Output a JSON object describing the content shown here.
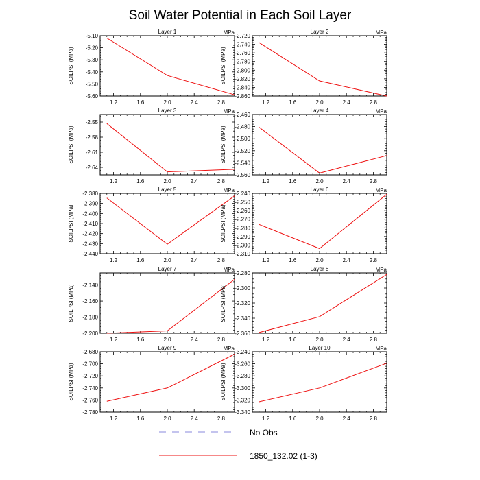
{
  "title": "Soil Water Potential in Each Soil Layer",
  "legend": [
    {
      "label": "No Obs",
      "color": "#8888dd",
      "style": "dashed"
    },
    {
      "label": "1850_132.02 (1-3)",
      "color": "#ee1111",
      "style": "solid"
    }
  ],
  "chart_data": [
    {
      "type": "line",
      "title": "Layer 1",
      "unit": "MPa",
      "ylabel": "SOILPSI  (MPa)",
      "xlim": [
        1,
        3
      ],
      "xticks": [
        "1.2",
        "1.6",
        "2.0",
        "2.4",
        "2.8"
      ],
      "ylim": [
        -5.6,
        -5.1
      ],
      "yticks": [
        "-5.10",
        "-5.20",
        "-5.30",
        "-5.40",
        "-5.50",
        "-5.60"
      ],
      "series": [
        {
          "x": [
            1.1,
            2.0,
            3.0
          ],
          "y": [
            -5.12,
            -5.43,
            -5.59
          ],
          "color": "#ee1111"
        }
      ]
    },
    {
      "type": "line",
      "title": "Layer 2",
      "unit": "MPa",
      "ylabel": "SOILPSI  (MPa)",
      "xlim": [
        1,
        3
      ],
      "xticks": [
        "1.2",
        "1.6",
        "2.0",
        "2.4",
        "2.8"
      ],
      "ylim": [
        -2.86,
        -2.72
      ],
      "yticks": [
        "-2.720",
        "-2.740",
        "-2.760",
        "-2.780",
        "-2.800",
        "-2.820",
        "-2.840",
        "-2.860"
      ],
      "series": [
        {
          "x": [
            1.1,
            2.0,
            3.0
          ],
          "y": [
            -2.736,
            -2.825,
            -2.86
          ],
          "color": "#ee1111"
        }
      ]
    },
    {
      "type": "line",
      "title": "Layer 3",
      "unit": "MPa",
      "ylabel": "SOILPSI  (MPa)",
      "xlim": [
        1,
        3
      ],
      "xticks": [
        "1.2",
        "1.6",
        "2.0",
        "2.4",
        "2.8"
      ],
      "ylim": [
        -2.655,
        -2.535
      ],
      "yticks": [
        "-2.55",
        "-2.58",
        "-2.61",
        "-2.64"
      ],
      "series": [
        {
          "x": [
            1.1,
            2.0,
            3.0
          ],
          "y": [
            -2.553,
            -2.649,
            -2.644
          ],
          "color": "#ee1111"
        }
      ]
    },
    {
      "type": "line",
      "title": "Layer 4",
      "unit": "MPa",
      "ylabel": "SOILPSI  (MPa)",
      "xlim": [
        1,
        3
      ],
      "xticks": [
        "1.2",
        "1.6",
        "2.0",
        "2.4",
        "2.8"
      ],
      "ylim": [
        -2.56,
        -2.46
      ],
      "yticks": [
        "-2.460",
        "-2.480",
        "-2.500",
        "-2.520",
        "-2.540",
        "-2.560"
      ],
      "series": [
        {
          "x": [
            1.1,
            2.0,
            3.0
          ],
          "y": [
            -2.481,
            -2.557,
            -2.528
          ],
          "color": "#ee1111"
        }
      ]
    },
    {
      "type": "line",
      "title": "Layer 5",
      "unit": "MPa",
      "ylabel": "SOILPSI  (MPa)",
      "xlim": [
        1,
        3
      ],
      "xticks": [
        "1.2",
        "1.6",
        "2.0",
        "2.4",
        "2.8"
      ],
      "ylim": [
        -2.44,
        -2.38
      ],
      "yticks": [
        "-2.380",
        "-2.390",
        "-2.400",
        "-2.410",
        "-2.420",
        "-2.430",
        "-2.440"
      ],
      "series": [
        {
          "x": [
            1.1,
            2.0,
            3.0
          ],
          "y": [
            -2.3845,
            -2.4305,
            -2.3825
          ],
          "color": "#ee1111"
        }
      ]
    },
    {
      "type": "line",
      "title": "Layer 6",
      "unit": "MPa",
      "ylabel": "SOILPSI  (MPa)",
      "xlim": [
        1,
        3
      ],
      "xticks": [
        "1.2",
        "1.6",
        "2.0",
        "2.4",
        "2.8"
      ],
      "ylim": [
        -2.31,
        -2.24
      ],
      "yticks": [
        "-2.240",
        "-2.250",
        "-2.260",
        "-2.270",
        "-2.280",
        "-2.290",
        "-2.300",
        "-2.310"
      ],
      "series": [
        {
          "x": [
            1.1,
            2.0,
            3.0
          ],
          "y": [
            -2.276,
            -2.304,
            -2.241
          ],
          "color": "#ee1111"
        }
      ]
    },
    {
      "type": "line",
      "title": "Layer 7",
      "unit": "MPa",
      "ylabel": "SOILPSI  (MPa)",
      "xlim": [
        1,
        3
      ],
      "xticks": [
        "1.2",
        "1.6",
        "2.0",
        "2.4",
        "2.8"
      ],
      "ylim": [
        -2.2,
        -2.125
      ],
      "yticks": [
        "-2.140",
        "-2.160",
        "-2.180",
        "-2.200"
      ],
      "series": [
        {
          "x": [
            1.1,
            2.0,
            3.0
          ],
          "y": [
            -2.2,
            -2.197,
            -2.133
          ],
          "color": "#ee1111"
        }
      ]
    },
    {
      "type": "line",
      "title": "Layer 8",
      "unit": "MPa",
      "ylabel": "SOILPSI  (MPa)",
      "xlim": [
        1,
        3
      ],
      "xticks": [
        "1.2",
        "1.6",
        "2.0",
        "2.4",
        "2.8"
      ],
      "ylim": [
        -2.36,
        -2.28
      ],
      "yticks": [
        "-2.280",
        "-2.300",
        "-2.320",
        "-2.340",
        "-2.360"
      ],
      "series": [
        {
          "x": [
            1.1,
            2.0,
            3.0
          ],
          "y": [
            -2.359,
            -2.338,
            -2.282
          ],
          "color": "#ee1111"
        }
      ]
    },
    {
      "type": "line",
      "title": "Layer 9",
      "unit": "MPa",
      "ylabel": "SOILPSI  (MPa)",
      "xlim": [
        1,
        3
      ],
      "xticks": [
        "1.2",
        "1.6",
        "2.0",
        "2.4",
        "2.8"
      ],
      "ylim": [
        -2.78,
        -2.68
      ],
      "yticks": [
        "-2.680",
        "-2.700",
        "-2.720",
        "-2.740",
        "-2.760",
        "-2.780"
      ],
      "series": [
        {
          "x": [
            1.1,
            2.0,
            3.0
          ],
          "y": [
            -2.762,
            -2.74,
            -2.684
          ],
          "color": "#ee1111"
        }
      ]
    },
    {
      "type": "line",
      "title": "Layer 10",
      "unit": "MPa",
      "ylabel": "SOILPSI  (MPa)",
      "xlim": [
        1,
        3
      ],
      "xticks": [
        "1.2",
        "1.6",
        "2.0",
        "2.4",
        "2.8"
      ],
      "ylim": [
        -3.34,
        -3.24
      ],
      "yticks": [
        "-3.240",
        "-3.260",
        "-3.280",
        "-3.300",
        "-3.320",
        "-3.340"
      ],
      "series": [
        {
          "x": [
            1.1,
            2.0,
            3.0
          ],
          "y": [
            -3.323,
            -3.3,
            -3.259
          ],
          "color": "#ee1111"
        }
      ]
    }
  ]
}
